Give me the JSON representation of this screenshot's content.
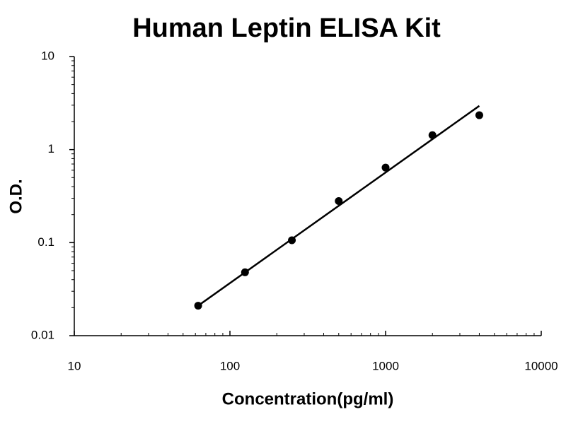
{
  "chart_data": {
    "type": "scatter",
    "title": "Human Leptin ELISA Kit",
    "x_label": "Concentration(pg/ml)",
    "y_label": "O.D.",
    "x": [
      62.5,
      125,
      250,
      500,
      1000,
      2000,
      4000
    ],
    "values": [
      0.021,
      0.048,
      0.106,
      0.28,
      0.64,
      1.43,
      2.34
    ],
    "color": "#000000",
    "trendline": {
      "x": [
        62.5,
        4000
      ],
      "values": [
        0.021,
        2.95
      ],
      "color": "#000000"
    },
    "xlim": [
      10,
      10000
    ],
    "ylim": [
      0.01,
      10
    ],
    "xticks": [
      10,
      100,
      1000,
      10000
    ],
    "yticks": [
      0.01,
      0.1,
      1,
      10
    ],
    "xscale": "log",
    "yscale": "log",
    "minor_ticks": true
  }
}
